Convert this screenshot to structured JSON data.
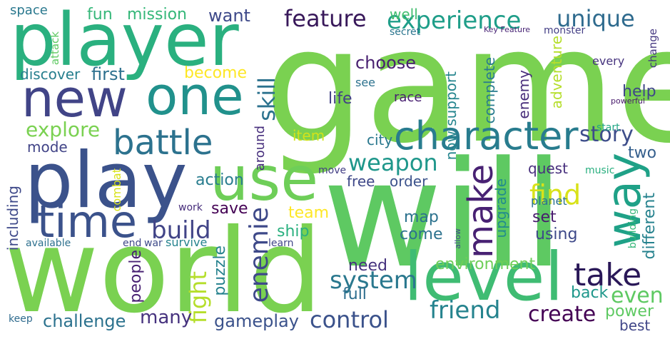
{
  "words": [
    {
      "text": "game",
      "color": "#7ad151"
    },
    {
      "text": "will",
      "color": "#5ec962"
    },
    {
      "text": "world",
      "color": "#7ad151"
    },
    {
      "text": "player",
      "color": "#2ab07f"
    },
    {
      "text": "play",
      "color": "#3b528b"
    },
    {
      "text": "level",
      "color": "#3fbc73"
    },
    {
      "text": "use",
      "color": "#6ece58"
    },
    {
      "text": "one",
      "color": "#21918c"
    },
    {
      "text": "new",
      "color": "#414487"
    },
    {
      "text": "time",
      "color": "#3b528b"
    },
    {
      "text": "character",
      "color": "#287c8e"
    },
    {
      "text": "battle",
      "color": "#2c728e"
    },
    {
      "text": "way",
      "color": "#1fa187"
    },
    {
      "text": "make",
      "color": "#482173"
    },
    {
      "text": "take",
      "color": "#2a1858"
    },
    {
      "text": "experience",
      "color": "#1f9e89"
    },
    {
      "text": "feature",
      "color": "#38185a"
    },
    {
      "text": "unique",
      "color": "#2f6b8e"
    },
    {
      "text": "story",
      "color": "#3d4d8a"
    },
    {
      "text": "find",
      "color": "#d8e219"
    },
    {
      "text": "enemie",
      "color": "#3e4989"
    },
    {
      "text": "build",
      "color": "#414487"
    },
    {
      "text": "weapon",
      "color": "#1f978b"
    },
    {
      "text": "system",
      "color": "#2a788e"
    },
    {
      "text": "friend",
      "color": "#25838e"
    },
    {
      "text": "control",
      "color": "#3b528b"
    },
    {
      "text": "create",
      "color": "#440154"
    },
    {
      "text": "explore",
      "color": "#7ad151"
    },
    {
      "text": "skill",
      "color": "#2c728e"
    },
    {
      "text": "even",
      "color": "#5ec962"
    },
    {
      "text": "fight",
      "color": "#b5de2b"
    },
    {
      "text": "challenge",
      "color": "#2c728e"
    },
    {
      "text": "gameplay",
      "color": "#3b528b"
    },
    {
      "text": "many",
      "color": "#46327e"
    },
    {
      "text": "mission",
      "color": "#35b779"
    },
    {
      "text": "fun",
      "color": "#35b779"
    },
    {
      "text": "want",
      "color": "#3e4989"
    },
    {
      "text": "choose",
      "color": "#481f70"
    },
    {
      "text": "help",
      "color": "#3f4788"
    },
    {
      "text": "two",
      "color": "#355f8d"
    },
    {
      "text": "well",
      "color": "#44bf70"
    },
    {
      "text": "first",
      "color": "#2d708e"
    },
    {
      "text": "become",
      "color": "#fde725"
    },
    {
      "text": "mode",
      "color": "#414487"
    },
    {
      "text": "action",
      "color": "#287c8e"
    },
    {
      "text": "save",
      "color": "#440154"
    },
    {
      "text": "team",
      "color": "#fde725"
    },
    {
      "text": "ship",
      "color": "#2ab07f"
    },
    {
      "text": "map",
      "color": "#2c728e"
    },
    {
      "text": "set",
      "color": "#481b6d"
    },
    {
      "text": "using",
      "color": "#3e4989"
    },
    {
      "text": "come",
      "color": "#2c728e"
    },
    {
      "text": "people",
      "color": "#482173"
    },
    {
      "text": "puzzle",
      "color": "#26828e"
    },
    {
      "text": "need",
      "color": "#46337e"
    },
    {
      "text": "full",
      "color": "#2e6e8e"
    },
    {
      "text": "environment",
      "color": "#6ece58"
    },
    {
      "text": "back",
      "color": "#1f978b"
    },
    {
      "text": "power",
      "color": "#5ec962"
    },
    {
      "text": "best",
      "color": "#404688"
    },
    {
      "text": "life",
      "color": "#424086"
    },
    {
      "text": "city",
      "color": "#2a788e"
    },
    {
      "text": "item",
      "color": "#d2e21b"
    },
    {
      "text": "free",
      "color": "#3f4889"
    },
    {
      "text": "order",
      "color": "#3b528b"
    },
    {
      "text": "quest",
      "color": "#472f7d"
    },
    {
      "text": "discover",
      "color": "#277f8e"
    },
    {
      "text": "space",
      "color": "#2a788e"
    },
    {
      "text": "including",
      "color": "#3e4989"
    },
    {
      "text": "different",
      "color": "#26828e"
    },
    {
      "text": "upgrade",
      "color": "#228c8d"
    },
    {
      "text": "complete",
      "color": "#287c8e"
    },
    {
      "text": "now support",
      "color": "#25858e"
    },
    {
      "text": "adventure",
      "color": "#b5de2b"
    },
    {
      "text": "enemy",
      "color": "#472c7a"
    },
    {
      "text": "around",
      "color": "#472f7d"
    },
    {
      "text": "race",
      "color": "#481f70"
    },
    {
      "text": "see",
      "color": "#2c728e"
    },
    {
      "text": "every",
      "color": "#46337e"
    },
    {
      "text": "change",
      "color": "#453781"
    },
    {
      "text": "secret",
      "color": "#2b758e"
    },
    {
      "text": "Key Feature",
      "color": "#482475"
    },
    {
      "text": "monster",
      "color": "#433e85"
    },
    {
      "text": "powerful",
      "color": "#481a6c"
    },
    {
      "text": "start",
      "color": "#21a685"
    },
    {
      "text": "music",
      "color": "#29af7f"
    },
    {
      "text": "move",
      "color": "#433e85"
    },
    {
      "text": "work",
      "color": "#472d7b"
    },
    {
      "text": "war",
      "color": "#3e4a89"
    },
    {
      "text": "survive",
      "color": "#25838e"
    },
    {
      "text": "end",
      "color": "#3f4788"
    },
    {
      "text": "available",
      "color": "#2d708e"
    },
    {
      "text": "learn",
      "color": "#404688"
    },
    {
      "text": "planet",
      "color": "#2c728e"
    },
    {
      "text": "allow",
      "color": "#3e4a89"
    },
    {
      "text": "building",
      "color": "#35b779"
    },
    {
      "text": "combat",
      "color": "#d8e219"
    },
    {
      "text": "attack",
      "color": "#5ec962"
    },
    {
      "text": "keep",
      "color": "#2f6b8e"
    }
  ]
}
